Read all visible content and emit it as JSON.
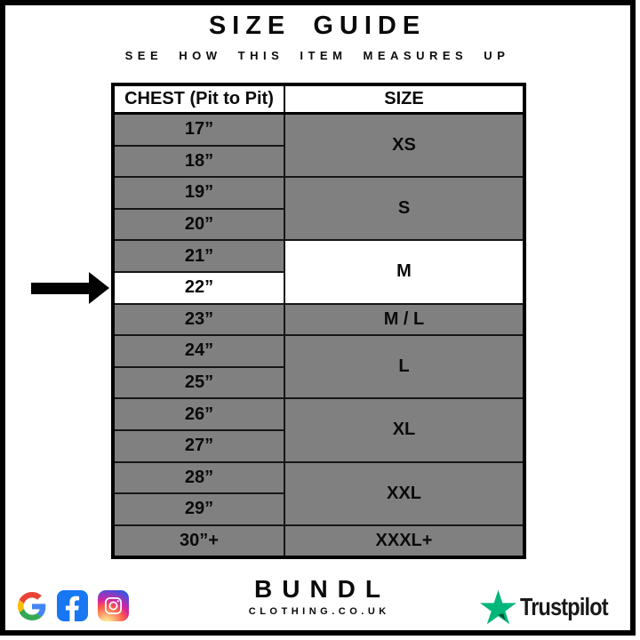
{
  "page": {
    "title": "SIZE GUIDE",
    "subtitle": "SEE HOW THIS ITEM MEASURES UP"
  },
  "table": {
    "headers": {
      "chest": "CHEST (Pit to Pit)",
      "size": "SIZE"
    },
    "groups": [
      {
        "size": "XS",
        "highlight": false,
        "rows": [
          {
            "chest": "17”",
            "highlight": false
          },
          {
            "chest": "18”",
            "highlight": false
          }
        ]
      },
      {
        "size": "S",
        "highlight": false,
        "rows": [
          {
            "chest": "19”",
            "highlight": false
          },
          {
            "chest": "20”",
            "highlight": false
          }
        ]
      },
      {
        "size": "M",
        "highlight": true,
        "rows": [
          {
            "chest": "21”",
            "highlight": false
          },
          {
            "chest": "22”",
            "highlight": true
          }
        ]
      },
      {
        "size": "M / L",
        "highlight": false,
        "rows": [
          {
            "chest": "23”",
            "highlight": false
          }
        ]
      },
      {
        "size": "L",
        "highlight": false,
        "rows": [
          {
            "chest": "24”",
            "highlight": false
          },
          {
            "chest": "25”",
            "highlight": false
          }
        ]
      },
      {
        "size": "XL",
        "highlight": false,
        "rows": [
          {
            "chest": "26”",
            "highlight": false
          },
          {
            "chest": "27”",
            "highlight": false
          }
        ]
      },
      {
        "size": "XXL",
        "highlight": false,
        "rows": [
          {
            "chest": "28”",
            "highlight": false
          },
          {
            "chest": "29”",
            "highlight": false
          }
        ]
      },
      {
        "size": "XXXL+",
        "highlight": false,
        "rows": [
          {
            "chest": "30”+",
            "highlight": false
          }
        ]
      }
    ]
  },
  "indicator": {
    "shape": "arrow-right",
    "points_to_chest": "22”",
    "points_to_size": "M"
  },
  "footer": {
    "brand": {
      "name": "BUNDL",
      "domain": "CLOTHING.CO.UK"
    },
    "trustpilot": {
      "label": "Trustpilot"
    },
    "social_icons": [
      "google-icon",
      "facebook-icon",
      "instagram-icon"
    ]
  },
  "colors": {
    "cell_gray": "#808080",
    "highlight_white": "#ffffff",
    "border_black": "#000000",
    "facebook_blue": "#1877f2",
    "trustpilot_green": "#00b67a",
    "trustpilot_dark_green": "#005128",
    "google_blue": "#4285F4",
    "google_red": "#EA4335",
    "google_yellow": "#FBBC05",
    "google_green": "#34A853",
    "instagram_gradient": [
      "#fdf497",
      "#fd5949",
      "#d6249f",
      "#285AEB"
    ]
  }
}
